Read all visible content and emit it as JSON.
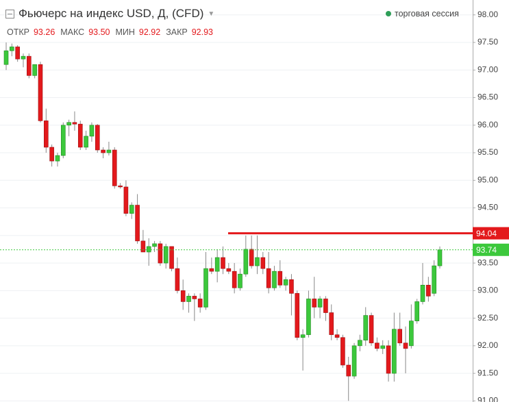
{
  "chart_data": {
    "type": "candlestick",
    "title": "Фьючерс на индекс USD, Д, (CFD)",
    "session_label": "торговая сессия",
    "session_color": "#2e9e58",
    "readout": [
      {
        "name": "ОТКР",
        "value": 93.26,
        "label": "93.26"
      },
      {
        "name": "МАКС",
        "value": 93.5,
        "label": "93.50"
      },
      {
        "name": "МИН",
        "value": 92.92,
        "label": "92.92"
      },
      {
        "name": "ЗАКР",
        "value": 92.93,
        "label": "92.93"
      }
    ],
    "open": [
      97.1,
      97.35,
      97.42,
      97.2,
      97.25,
      96.9,
      97.1,
      96.08,
      95.6,
      95.35,
      95.45,
      96.0,
      96.05,
      96.02,
      95.6,
      95.8,
      96.0,
      95.55,
      95.5,
      95.55,
      94.9,
      94.88,
      94.4,
      94.55,
      93.9,
      93.7,
      93.8,
      93.85,
      93.5,
      93.8,
      93.4,
      93.0,
      92.8,
      92.9,
      92.85,
      92.7,
      93.4,
      93.35,
      93.6,
      93.4,
      93.35,
      93.05,
      93.3,
      93.75,
      93.45,
      93.6,
      93.4,
      93.05,
      93.35,
      93.1,
      93.2,
      92.95,
      92.15,
      92.2,
      92.85,
      92.7,
      92.85,
      92.6,
      92.2,
      92.15,
      91.65,
      91.45,
      92.0,
      92.1,
      92.55,
      92.05,
      91.95,
      92.0,
      91.5,
      92.3,
      92.05,
      92.0,
      92.45,
      92.8,
      93.1,
      92.95,
      93.45
    ],
    "high": [
      97.5,
      97.48,
      97.45,
      97.3,
      97.3,
      97.1,
      97.15,
      96.3,
      95.65,
      95.5,
      96.05,
      96.1,
      96.25,
      96.08,
      95.9,
      96.05,
      96.02,
      95.6,
      95.7,
      95.6,
      94.95,
      95.0,
      94.6,
      94.75,
      94.1,
      93.95,
      93.9,
      93.9,
      93.85,
      93.8,
      93.6,
      93.2,
      92.95,
      92.95,
      92.95,
      93.7,
      93.6,
      93.75,
      93.8,
      93.5,
      93.5,
      93.4,
      94.0,
      94.0,
      94.0,
      93.7,
      93.7,
      93.45,
      93.55,
      93.25,
      93.3,
      93.0,
      92.3,
      93.0,
      93.25,
      92.9,
      92.9,
      92.75,
      92.3,
      92.2,
      91.8,
      92.05,
      92.2,
      92.7,
      92.6,
      92.15,
      92.1,
      92.1,
      92.6,
      92.6,
      92.35,
      92.75,
      92.85,
      93.5,
      93.25,
      93.55,
      93.8
    ],
    "low": [
      97.0,
      97.25,
      97.15,
      97.05,
      96.85,
      96.85,
      96.05,
      95.5,
      95.25,
      95.25,
      95.4,
      95.8,
      95.9,
      95.55,
      95.55,
      95.7,
      95.5,
      95.4,
      95.45,
      94.85,
      94.85,
      94.35,
      94.3,
      93.85,
      93.7,
      93.45,
      93.7,
      93.45,
      93.4,
      93.35,
      92.95,
      92.65,
      92.6,
      92.45,
      92.6,
      92.65,
      93.3,
      93.15,
      93.3,
      93.3,
      92.95,
      93.0,
      93.25,
      93.4,
      93.3,
      93.3,
      92.95,
      93.0,
      93.05,
      93.0,
      92.55,
      92.1,
      91.55,
      92.15,
      92.5,
      92.5,
      92.45,
      92.1,
      92.1,
      91.6,
      91.0,
      91.4,
      91.9,
      92.0,
      92.0,
      91.9,
      91.85,
      91.35,
      91.35,
      92.0,
      91.5,
      91.95,
      92.4,
      92.75,
      92.8,
      92.9,
      93.4
    ],
    "close": [
      97.35,
      97.42,
      97.2,
      97.25,
      96.9,
      97.1,
      96.08,
      95.6,
      95.35,
      95.45,
      96.0,
      96.05,
      96.02,
      95.6,
      95.8,
      96.0,
      95.55,
      95.5,
      95.55,
      94.9,
      94.88,
      94.4,
      94.55,
      93.9,
      93.7,
      93.8,
      93.85,
      93.5,
      93.8,
      93.4,
      93.0,
      92.8,
      92.9,
      92.85,
      92.7,
      93.4,
      93.35,
      93.6,
      93.4,
      93.35,
      93.05,
      93.3,
      93.75,
      93.45,
      93.6,
      93.4,
      93.05,
      93.35,
      93.1,
      93.2,
      92.95,
      92.15,
      92.2,
      92.85,
      92.7,
      92.85,
      92.6,
      92.2,
      92.15,
      91.65,
      91.45,
      92.0,
      92.1,
      92.55,
      92.05,
      91.95,
      92.0,
      91.5,
      92.3,
      92.05,
      91.95,
      92.45,
      92.8,
      93.1,
      92.9,
      93.45,
      93.74
    ],
    "up_color": "#3cc83c",
    "down_color": "#e3191c",
    "ylim": [
      90.98,
      98.27
    ],
    "yticks": [
      {
        "value": 98,
        "label": "98.00"
      },
      {
        "value": 97.5,
        "label": "97.50"
      },
      {
        "value": 97,
        "label": "97.00"
      },
      {
        "value": 96.5,
        "label": "96.50"
      },
      {
        "value": 96,
        "label": "96.00"
      },
      {
        "value": 95.5,
        "label": "95.50"
      },
      {
        "value": 95,
        "label": "95.00"
      },
      {
        "value": 94.5,
        "label": "94.50"
      },
      {
        "value": 94,
        "label": "94.00"
      },
      {
        "value": 93.5,
        "label": "93.50"
      },
      {
        "value": 93,
        "label": "93.00"
      },
      {
        "value": 92.5,
        "label": "92.50"
      },
      {
        "value": 92,
        "label": "92.00"
      },
      {
        "value": 91.5,
        "label": "91.50"
      },
      {
        "value": 91,
        "label": "91.00"
      }
    ],
    "grid": true,
    "price_lines": [
      {
        "value": 94.04,
        "color": "#e3191c",
        "style": "solid"
      },
      {
        "value": 93.74,
        "color": "#3cc83c",
        "style": "dotted"
      }
    ]
  }
}
